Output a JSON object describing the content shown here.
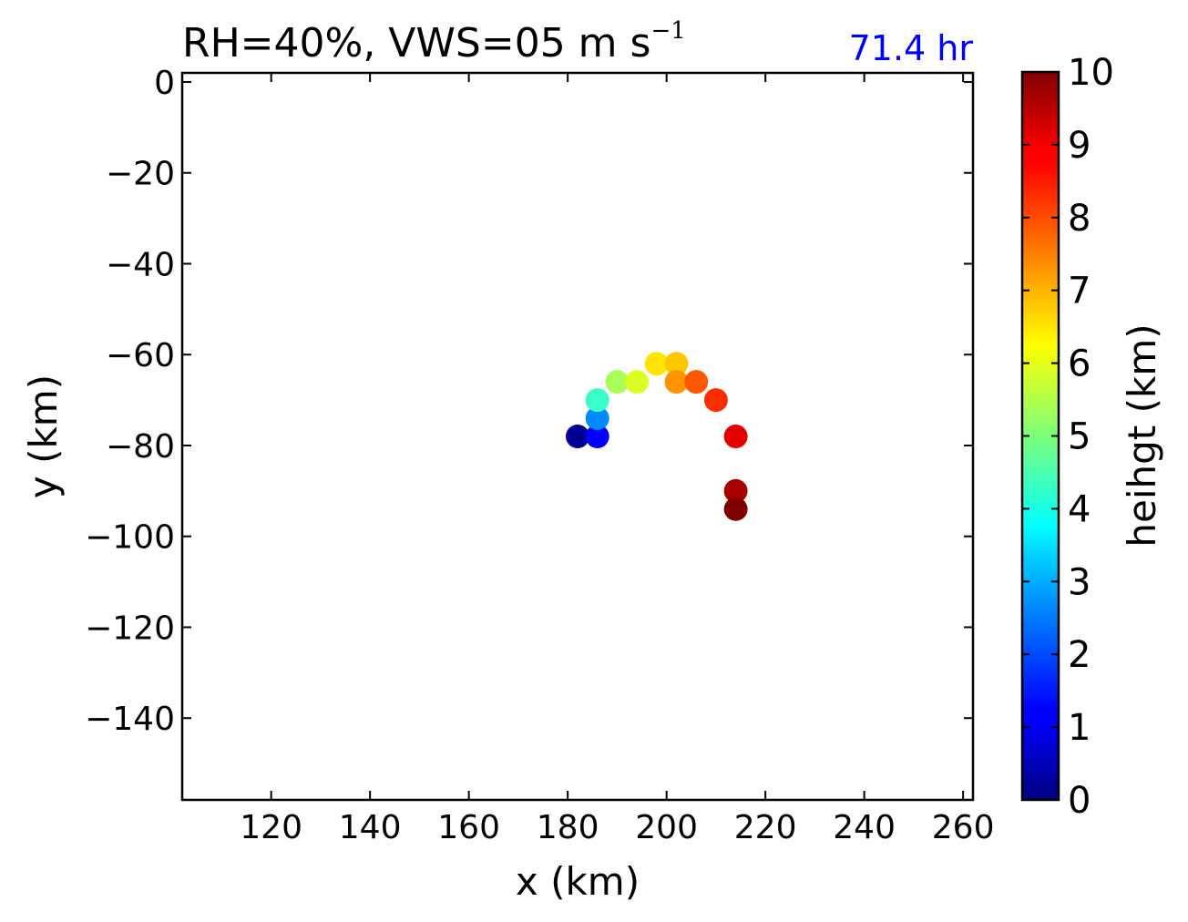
{
  "chart_data": {
    "type": "scatter",
    "title_prefix": "RH=40%, VWS=05 m s",
    "title_exponent": "−1",
    "time_label": "71.4 hr",
    "time_label_color": "#0000ff",
    "xlabel": "x (km)",
    "ylabel": "y (km)",
    "xlim": [
      102,
      262
    ],
    "ylim": [
      -158,
      2
    ],
    "xticks": [
      120,
      140,
      160,
      180,
      200,
      220,
      240,
      260
    ],
    "yticks": [
      0,
      -20,
      -40,
      -60,
      -80,
      -100,
      -120,
      -140
    ],
    "xtick_labels": [
      "120",
      "140",
      "160",
      "180",
      "200",
      "220",
      "240",
      "260"
    ],
    "ytick_labels": [
      "0",
      "−20",
      "−40",
      "−60",
      "−80",
      "−100",
      "−120",
      "−140"
    ],
    "grid": false,
    "colormap": "jet",
    "points": [
      {
        "x": 182,
        "y": -78,
        "height": 0.2
      },
      {
        "x": 186,
        "y": -78,
        "height": 1.2
      },
      {
        "x": 186,
        "y": -74,
        "height": 2.6
      },
      {
        "x": 186,
        "y": -70,
        "height": 4.3
      },
      {
        "x": 190,
        "y": -66,
        "height": 5.4
      },
      {
        "x": 194,
        "y": -66,
        "height": 5.9
      },
      {
        "x": 198,
        "y": -62,
        "height": 6.5
      },
      {
        "x": 202,
        "y": -62,
        "height": 6.8
      },
      {
        "x": 202,
        "y": -66,
        "height": 7.3
      },
      {
        "x": 206,
        "y": -66,
        "height": 7.9
      },
      {
        "x": 210,
        "y": -70,
        "height": 8.3
      },
      {
        "x": 214,
        "y": -78,
        "height": 9.0
      },
      {
        "x": 214,
        "y": -90,
        "height": 9.6
      },
      {
        "x": 214,
        "y": -94,
        "height": 10.0
      }
    ],
    "colorbar": {
      "label": "heihgt (km)",
      "range": [
        0,
        10
      ],
      "ticks": [
        0,
        1,
        2,
        3,
        4,
        5,
        6,
        7,
        8,
        9,
        10
      ],
      "tick_labels": [
        "0",
        "1",
        "2",
        "3",
        "4",
        "5",
        "6",
        "7",
        "8",
        "9",
        "10"
      ]
    }
  }
}
